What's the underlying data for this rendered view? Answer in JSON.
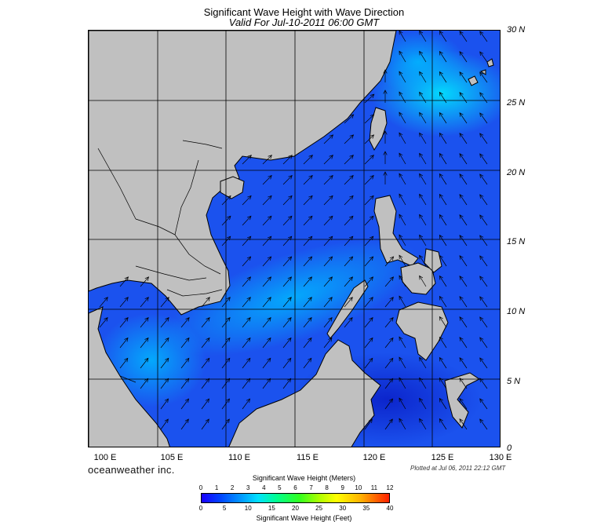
{
  "header": {
    "title": "Significant Wave Height with Wave Direction",
    "subtitle": "Valid For Jul-10-2011 06:00 GMT"
  },
  "map": {
    "latitude_labels": [
      "30 N",
      "25 N",
      "20 N",
      "15 N",
      "10 N",
      "5 N",
      "0"
    ],
    "longitude_labels": [
      "100 E",
      "105 E",
      "110 E",
      "115 E",
      "120 E",
      "125 E",
      "130 E"
    ],
    "extent": {
      "lon_min": 100,
      "lon_max": 130,
      "lat_min": 0,
      "lat_max": 30
    },
    "land_color": "#c0c0c0",
    "ocean_base_color": "#1b52ee",
    "wave_direction": "predominantly toward the northeast in the South China Sea and toward the northwest in the western Pacific"
  },
  "footer": {
    "brand": "oceanweather inc.",
    "plotted": "Plotted at Jul 06, 2011 22:12 GMT"
  },
  "colorbar": {
    "title_meters": "Significant Wave Height (Meters)",
    "title_feet": "Significant Wave Height (Feet)",
    "meter_ticks": [
      "0",
      "1",
      "2",
      "3",
      "4",
      "5",
      "6",
      "7",
      "8",
      "9",
      "10",
      "11",
      "12"
    ],
    "feet_ticks": [
      "0",
      "5",
      "10",
      "15",
      "20",
      "25",
      "30",
      "35",
      "40"
    ],
    "colors": [
      "#1a00ff",
      "#0044ff",
      "#00a0ff",
      "#00e0ff",
      "#00ff90",
      "#30ff20",
      "#b0ff00",
      "#ffff00",
      "#ffb000",
      "#ff2000"
    ]
  }
}
